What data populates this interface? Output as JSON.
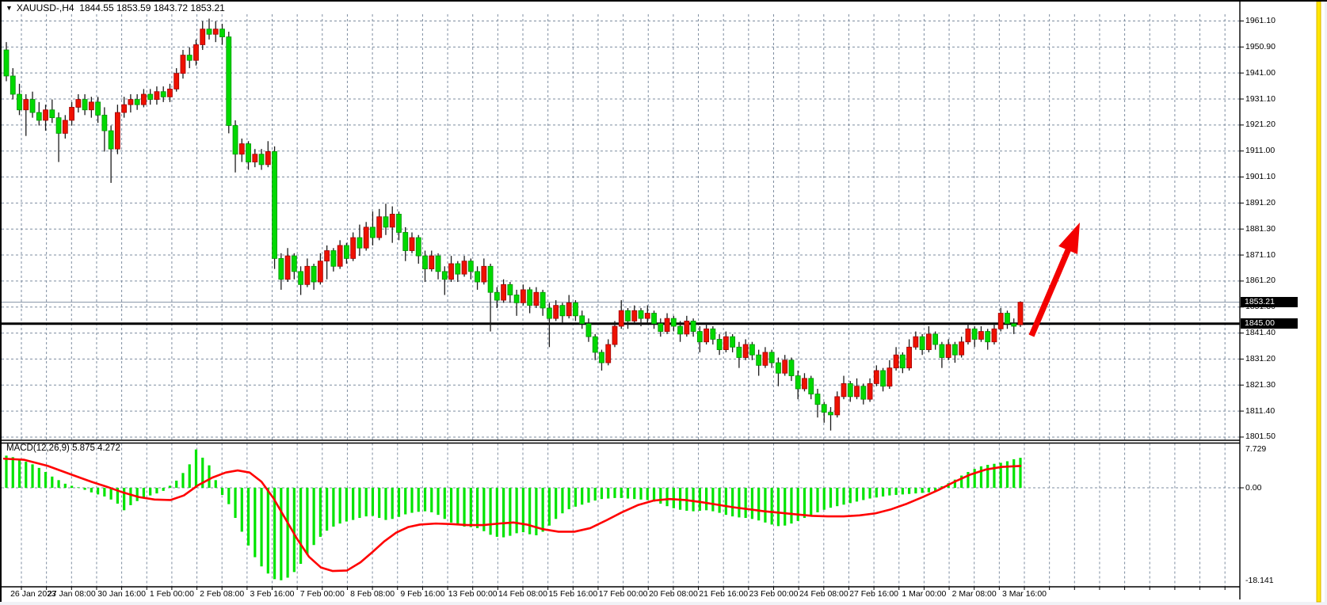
{
  "window": {
    "dropdown_icon": "▼",
    "symbol_period": "XAUUSD-,H4",
    "ohlc_text": "1844.55 1853.59 1843.72 1853.21"
  },
  "chart_data": {
    "type": "candlestick",
    "symbol": "XAUUSD",
    "timeframe": "H4",
    "current_ohlc": {
      "open": "1844.55",
      "high": "1853.59",
      "low": "1843.72",
      "close": "1853.21"
    },
    "price_axis_ticks": [
      "1961.10",
      "1950.90",
      "1941.00",
      "1931.10",
      "1921.20",
      "1911.00",
      "1901.10",
      "1891.20",
      "1881.30",
      "1871.10",
      "1861.20",
      "1851.30",
      "1841.40",
      "1831.20",
      "1821.30",
      "1811.40",
      "1801.50"
    ],
    "time_axis_labels": [
      "26 Jan 2023",
      "27 Jan 08:00",
      "30 Jan 16:00",
      "1 Feb 00:00",
      "2 Feb 08:00",
      "3 Feb 16:00",
      "7 Feb 00:00",
      "8 Feb 08:00",
      "9 Feb 16:00",
      "13 Feb 00:00",
      "14 Feb 08:00",
      "15 Feb 16:00",
      "17 Feb 00:00",
      "20 Feb 08:00",
      "21 Feb 16:00",
      "23 Feb 00:00",
      "24 Feb 08:00",
      "27 Feb 16:00",
      "1 Mar 00:00",
      "2 Mar 08:00",
      "3 Mar 16:00"
    ],
    "bid_price_label": "1853.21",
    "bid_price": 1853.21,
    "hline_label": "1845.00",
    "hline_price": 1845.0,
    "candles": [
      [
        1950,
        1953,
        1938,
        1940
      ],
      [
        1940,
        1943,
        1931,
        1933
      ],
      [
        1933,
        1937,
        1925,
        1927
      ],
      [
        1927,
        1933,
        1917,
        1931
      ],
      [
        1931,
        1934,
        1924,
        1926
      ],
      [
        1926,
        1930,
        1921,
        1923
      ],
      [
        1923,
        1929,
        1919,
        1927
      ],
      [
        1927,
        1931,
        1922,
        1924
      ],
      [
        1924,
        1926,
        1907,
        1918
      ],
      [
        1918,
        1925,
        1916,
        1923
      ],
      [
        1923,
        1930,
        1921,
        1928
      ],
      [
        1928,
        1933,
        1926,
        1931
      ],
      [
        1931,
        1933,
        1925,
        1927
      ],
      [
        1927,
        1932,
        1924,
        1930
      ],
      [
        1930,
        1932,
        1922,
        1925
      ],
      [
        1925,
        1928,
        1911,
        1919
      ],
      [
        1919,
        1921,
        1899,
        1912
      ],
      [
        1912,
        1929,
        1910,
        1926
      ],
      [
        1926,
        1932,
        1924,
        1929
      ],
      [
        1929,
        1933,
        1926,
        1931
      ],
      [
        1931,
        1933,
        1927,
        1929
      ],
      [
        1929,
        1935,
        1928,
        1933
      ],
      [
        1933,
        1935,
        1929,
        1931
      ],
      [
        1931,
        1936,
        1929,
        1934
      ],
      [
        1934,
        1936,
        1930,
        1932
      ],
      [
        1932,
        1937,
        1930,
        1935
      ],
      [
        1935,
        1943,
        1934,
        1941
      ],
      [
        1941,
        1950,
        1939,
        1948
      ],
      [
        1948,
        1951,
        1943,
        1946
      ],
      [
        1946,
        1954,
        1944,
        1952
      ],
      [
        1952,
        1961,
        1950,
        1958
      ],
      [
        1958,
        1962,
        1954,
        1956
      ],
      [
        1956,
        1961,
        1953,
        1958
      ],
      [
        1958,
        1960,
        1952,
        1955
      ],
      [
        1955,
        1957,
        1918,
        1921
      ],
      [
        1921,
        1923,
        1903,
        1910
      ],
      [
        1910,
        1916,
        1907,
        1914
      ],
      [
        1914,
        1915,
        1904,
        1907
      ],
      [
        1907,
        1912,
        1905,
        1910
      ],
      [
        1910,
        1912,
        1904,
        1906
      ],
      [
        1906,
        1915,
        1905,
        1911
      ],
      [
        1911,
        1913,
        1866,
        1870
      ],
      [
        1870,
        1872,
        1858,
        1862
      ],
      [
        1862,
        1874,
        1861,
        1871
      ],
      [
        1871,
        1872,
        1862,
        1865
      ],
      [
        1865,
        1867,
        1856,
        1860
      ],
      [
        1860,
        1870,
        1859,
        1867
      ],
      [
        1867,
        1868,
        1858,
        1861
      ],
      [
        1861,
        1872,
        1860,
        1869
      ],
      [
        1869,
        1875,
        1862,
        1873
      ],
      [
        1873,
        1874,
        1865,
        1867
      ],
      [
        1867,
        1877,
        1866,
        1875
      ],
      [
        1875,
        1876,
        1868,
        1870
      ],
      [
        1870,
        1880,
        1869,
        1878
      ],
      [
        1878,
        1883,
        1871,
        1874
      ],
      [
        1874,
        1884,
        1873,
        1882
      ],
      [
        1882,
        1888,
        1875,
        1878
      ],
      [
        1878,
        1889,
        1877,
        1886
      ],
      [
        1886,
        1891,
        1879,
        1882
      ],
      [
        1882,
        1890,
        1876,
        1887
      ],
      [
        1887,
        1888,
        1877,
        1880
      ],
      [
        1880,
        1882,
        1869,
        1873
      ],
      [
        1873,
        1880,
        1872,
        1878
      ],
      [
        1878,
        1879,
        1868,
        1871
      ],
      [
        1871,
        1873,
        1861,
        1866
      ],
      [
        1866,
        1873,
        1865,
        1871
      ],
      [
        1871,
        1872,
        1862,
        1865
      ],
      [
        1865,
        1867,
        1856,
        1862
      ],
      [
        1862,
        1871,
        1861,
        1868
      ],
      [
        1868,
        1869,
        1861,
        1864
      ],
      [
        1864,
        1871,
        1863,
        1869
      ],
      [
        1869,
        1870,
        1862,
        1865
      ],
      [
        1865,
        1867,
        1858,
        1861
      ],
      [
        1861,
        1870,
        1860,
        1867
      ],
      [
        1867,
        1868,
        1842,
        1857
      ],
      [
        1857,
        1859,
        1851,
        1854
      ],
      [
        1854,
        1862,
        1853,
        1860
      ],
      [
        1860,
        1861,
        1853,
        1856
      ],
      [
        1856,
        1858,
        1848,
        1853
      ],
      [
        1853,
        1860,
        1852,
        1858
      ],
      [
        1858,
        1859,
        1849,
        1852
      ],
      [
        1852,
        1859,
        1851,
        1857
      ],
      [
        1857,
        1858,
        1848,
        1851
      ],
      [
        1851,
        1853,
        1836,
        1847
      ],
      [
        1847,
        1854,
        1846,
        1852
      ],
      [
        1852,
        1853,
        1845,
        1848
      ],
      [
        1848,
        1856,
        1847,
        1853
      ],
      [
        1853,
        1854,
        1846,
        1848
      ],
      [
        1848,
        1850,
        1843,
        1845
      ],
      [
        1845,
        1847,
        1838,
        1840
      ],
      [
        1840,
        1841,
        1831,
        1834
      ],
      [
        1834,
        1835,
        1827,
        1830
      ],
      [
        1830,
        1839,
        1829,
        1837
      ],
      [
        1837,
        1846,
        1836,
        1844
      ],
      [
        1844,
        1854,
        1843,
        1850
      ],
      [
        1850,
        1851,
        1843,
        1846
      ],
      [
        1846,
        1852,
        1845,
        1850
      ],
      [
        1850,
        1851,
        1844,
        1847
      ],
      [
        1847,
        1852,
        1845,
        1849
      ],
      [
        1849,
        1850,
        1843,
        1845
      ],
      [
        1845,
        1847,
        1840,
        1842
      ],
      [
        1842,
        1849,
        1841,
        1847
      ],
      [
        1847,
        1848,
        1842,
        1844
      ],
      [
        1844,
        1846,
        1838,
        1841
      ],
      [
        1841,
        1848,
        1840,
        1846
      ],
      [
        1846,
        1847,
        1840,
        1842
      ],
      [
        1842,
        1844,
        1834,
        1838
      ],
      [
        1838,
        1845,
        1837,
        1843
      ],
      [
        1843,
        1844,
        1837,
        1839
      ],
      [
        1839,
        1841,
        1833,
        1835
      ],
      [
        1835,
        1842,
        1834,
        1840
      ],
      [
        1840,
        1841,
        1834,
        1836
      ],
      [
        1836,
        1838,
        1828,
        1832
      ],
      [
        1832,
        1839,
        1831,
        1837
      ],
      [
        1837,
        1838,
        1831,
        1833
      ],
      [
        1833,
        1835,
        1825,
        1829
      ],
      [
        1829,
        1836,
        1828,
        1834
      ],
      [
        1834,
        1835,
        1828,
        1830
      ],
      [
        1830,
        1832,
        1821,
        1826
      ],
      [
        1826,
        1833,
        1825,
        1831
      ],
      [
        1831,
        1832,
        1823,
        1825
      ],
      [
        1825,
        1827,
        1816,
        1820
      ],
      [
        1820,
        1826,
        1819,
        1824
      ],
      [
        1824,
        1825,
        1816,
        1818
      ],
      [
        1818,
        1820,
        1809,
        1814
      ],
      [
        1814,
        1815,
        1807,
        1811
      ],
      [
        1811,
        1813,
        1804,
        1810
      ],
      [
        1810,
        1819,
        1809,
        1817
      ],
      [
        1817,
        1825,
        1816,
        1822
      ],
      [
        1822,
        1823,
        1815,
        1817
      ],
      [
        1817,
        1824,
        1816,
        1821
      ],
      [
        1821,
        1822,
        1814,
        1816
      ],
      [
        1816,
        1824,
        1815,
        1822
      ],
      [
        1822,
        1829,
        1821,
        1827
      ],
      [
        1827,
        1828,
        1819,
        1821
      ],
      [
        1821,
        1831,
        1820,
        1828
      ],
      [
        1828,
        1836,
        1827,
        1833
      ],
      [
        1833,
        1834,
        1826,
        1828
      ],
      [
        1828,
        1839,
        1827,
        1836
      ],
      [
        1836,
        1842,
        1835,
        1840
      ],
      [
        1840,
        1841,
        1833,
        1835
      ],
      [
        1835,
        1844,
        1834,
        1841
      ],
      [
        1841,
        1842,
        1835,
        1837
      ],
      [
        1837,
        1838,
        1828,
        1832
      ],
      [
        1832,
        1839,
        1831,
        1837
      ],
      [
        1837,
        1838,
        1830,
        1833
      ],
      [
        1833,
        1840,
        1832,
        1838
      ],
      [
        1838,
        1845,
        1837,
        1843
      ],
      [
        1843,
        1844,
        1836,
        1839
      ],
      [
        1839,
        1844,
        1838,
        1842
      ],
      [
        1842,
        1843,
        1835,
        1838
      ],
      [
        1838,
        1845,
        1837,
        1843
      ],
      [
        1843,
        1851,
        1842,
        1849
      ],
      [
        1849,
        1850,
        1843,
        1845
      ],
      [
        1845,
        1847,
        1841,
        1844
      ],
      [
        1844.55,
        1853.59,
        1843.72,
        1853.21
      ]
    ],
    "indicator": {
      "name": "MACD",
      "label": "MACD(12,26,9) 5.875 4.272",
      "axis_ticks": [
        "7.729",
        "0.00",
        "-18.141"
      ],
      "histogram": [
        6.3,
        6.0,
        5.6,
        5.1,
        4.6,
        3.9,
        3.1,
        2.2,
        1.5,
        0.8,
        0.4,
        0.1,
        -0.4,
        -0.9,
        -1.3,
        -1.7,
        -2.3,
        -3.1,
        -4.4,
        -3.4,
        -2.6,
        -2.0,
        -1.5,
        -1.1,
        -0.6,
        0.4,
        1.4,
        2.9,
        4.6,
        7.5,
        5.9,
        4.4,
        1.5,
        -1.4,
        -3.2,
        -5.9,
        -8.6,
        -11.3,
        -13.6,
        -15.4,
        -16.8,
        -17.9,
        -18.1,
        -17.6,
        -16.5,
        -14.9,
        -13.1,
        -11.2,
        -9.6,
        -8.4,
        -7.6,
        -7.0,
        -6.6,
        -6.3,
        -5.9,
        -5.6,
        -5.5,
        -5.9,
        -6.3,
        -6.1,
        -5.7,
        -5.2,
        -4.9,
        -4.7,
        -4.6,
        -4.8,
        -5.3,
        -6.1,
        -6.8,
        -7.3,
        -7.6,
        -7.7,
        -7.9,
        -8.5,
        -9.2,
        -9.6,
        -9.7,
        -9.4,
        -8.9,
        -8.7,
        -9.1,
        -9.3,
        -8.6,
        -7.4,
        -6.1,
        -5.0,
        -4.2,
        -3.7,
        -3.3,
        -2.9,
        -2.5,
        -2.2,
        -2.1,
        -2.0,
        -2.0,
        -2.1,
        -2.2,
        -2.3,
        -2.4,
        -2.7,
        -3.1,
        -3.6,
        -4.0,
        -4.3,
        -4.5,
        -4.6,
        -4.5,
        -4.4,
        -4.6,
        -4.9,
        -5.3,
        -5.6,
        -5.8,
        -5.9,
        -6.1,
        -6.4,
        -6.8,
        -7.2,
        -7.5,
        -7.4,
        -7.0,
        -6.5,
        -5.9,
        -5.3,
        -4.8,
        -4.3,
        -3.9,
        -3.6,
        -3.3,
        -3.0,
        -2.7,
        -2.4,
        -2.1,
        -1.9,
        -1.7,
        -1.5,
        -1.4,
        -1.3,
        -1.2,
        -1.1,
        -1.0,
        -0.9,
        -0.7,
        0.3,
        0.9,
        1.6,
        2.4,
        3.1,
        3.7,
        4.2,
        4.5,
        4.7,
        4.9,
        5.2,
        5.6,
        5.875
      ],
      "signal": [
        [
          5,
          5.7
        ],
        [
          30,
          5.5
        ],
        [
          60,
          4.3
        ],
        [
          90,
          2.6
        ],
        [
          115,
          1.2
        ],
        [
          135,
          0.2
        ],
        [
          155,
          -0.9
        ],
        [
          175,
          -1.8
        ],
        [
          195,
          -2.3
        ],
        [
          215,
          -2.4
        ],
        [
          232,
          -1.5
        ],
        [
          250,
          0.5
        ],
        [
          268,
          2.0
        ],
        [
          285,
          3.0
        ],
        [
          300,
          3.4
        ],
        [
          315,
          3.0
        ],
        [
          330,
          1.2
        ],
        [
          345,
          -2.0
        ],
        [
          360,
          -6.0
        ],
        [
          375,
          -10.0
        ],
        [
          390,
          -13.5
        ],
        [
          405,
          -15.6
        ],
        [
          420,
          -16.3
        ],
        [
          438,
          -16.2
        ],
        [
          455,
          -14.6
        ],
        [
          470,
          -12.6
        ],
        [
          485,
          -10.5
        ],
        [
          500,
          -8.8
        ],
        [
          515,
          -7.7
        ],
        [
          530,
          -7.2
        ],
        [
          550,
          -7.0
        ],
        [
          570,
          -7.1
        ],
        [
          590,
          -7.3
        ],
        [
          610,
          -7.3
        ],
        [
          630,
          -7.0
        ],
        [
          648,
          -6.8
        ],
        [
          665,
          -7.2
        ],
        [
          685,
          -8.1
        ],
        [
          705,
          -8.6
        ],
        [
          725,
          -8.6
        ],
        [
          745,
          -7.9
        ],
        [
          765,
          -6.4
        ],
        [
          785,
          -4.8
        ],
        [
          805,
          -3.4
        ],
        [
          825,
          -2.5
        ],
        [
          845,
          -2.2
        ],
        [
          865,
          -2.4
        ],
        [
          885,
          -2.8
        ],
        [
          905,
          -3.3
        ],
        [
          925,
          -3.8
        ],
        [
          945,
          -4.2
        ],
        [
          965,
          -4.6
        ],
        [
          985,
          -4.9
        ],
        [
          1005,
          -5.2
        ],
        [
          1025,
          -5.5
        ],
        [
          1045,
          -5.6
        ],
        [
          1065,
          -5.6
        ],
        [
          1085,
          -5.4
        ],
        [
          1105,
          -5.0
        ],
        [
          1125,
          -4.2
        ],
        [
          1145,
          -3.1
        ],
        [
          1165,
          -1.8
        ],
        [
          1185,
          -0.4
        ],
        [
          1205,
          1.2
        ],
        [
          1225,
          2.6
        ],
        [
          1245,
          3.6
        ],
        [
          1265,
          4.1
        ],
        [
          1288,
          4.272
        ]
      ]
    },
    "annotation_arrow": {
      "from": [
        1302,
        424
      ],
      "to": [
        1363,
        281
      ]
    }
  },
  "colors": {
    "bull_body": "#ee1100",
    "bull_edge": "#a00000",
    "bear_body": "#00d900",
    "bear_edge": "#009400",
    "wick": "#1c1c1c",
    "grid": "#7e8da0",
    "hist": "#00e400",
    "signal_line": "#ff0000",
    "bid_line": "#8593a5",
    "hline": "#000000",
    "arrow": "#f30000",
    "tag_bg": "#000000",
    "tag_fg": "#ffffff",
    "stripe": "#ffe600",
    "stripe_edge": "#d8b400",
    "panel_border": "#000000",
    "background": "#ffffff"
  }
}
